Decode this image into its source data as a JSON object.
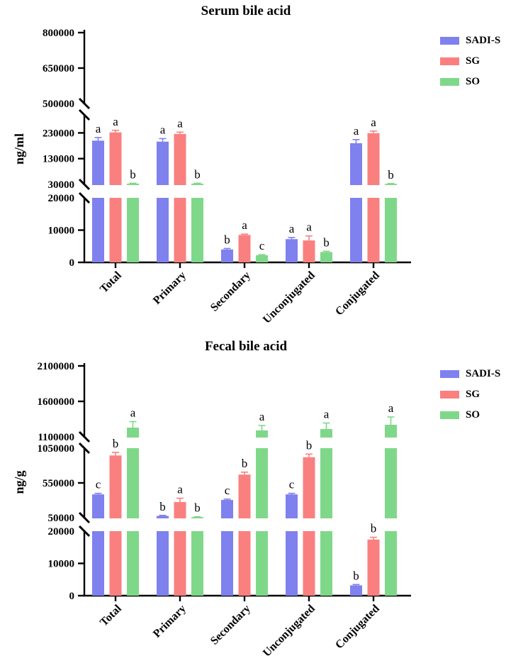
{
  "figure": {
    "background": "#ffffff"
  },
  "legend": {
    "items": [
      {
        "label": "SADI-S",
        "color": "#7f81ee"
      },
      {
        "label": "SG",
        "color": "#fa8080"
      },
      {
        "label": "SO",
        "color": "#7fd889"
      }
    ]
  },
  "chart_data": [
    {
      "type": "bar",
      "title": "Serum bile acid",
      "ylabel": "ng/ml",
      "unit": "ng/ml",
      "legend_position": "top-right",
      "grid": false,
      "categories": [
        "Total",
        "Primary",
        "Secondary",
        "Unconjugated",
        "Conjugated"
      ],
      "series": [
        {
          "name": "SADI-S",
          "color": "#7f81ee",
          "values": [
            200000,
            196000,
            4000,
            7200,
            190000
          ],
          "errors": [
            12000,
            12000,
            300,
            500,
            14000
          ],
          "letters": [
            "a",
            "a",
            "b",
            "a",
            "a"
          ]
        },
        {
          "name": "SG",
          "color": "#fa8080",
          "values": [
            232000,
            226000,
            8500,
            6800,
            229000
          ],
          "errors": [
            8000,
            7000,
            250,
            1400,
            8000
          ],
          "letters": [
            "a",
            "a",
            "a",
            "a",
            "a"
          ]
        },
        {
          "name": "SO",
          "color": "#7fd889",
          "values": [
            33000,
            33000,
            2200,
            3200,
            32000
          ],
          "errors": [
            1500,
            1500,
            200,
            250,
            1200
          ],
          "letters": [
            "b",
            "b",
            "c",
            "b",
            "b"
          ]
        }
      ],
      "axis_segments": [
        {
          "min": 500000,
          "max": 800000,
          "slash_top": false,
          "ticks": [
            {
              "v": 800000,
              "mark": "tick"
            },
            {
              "v": 650000,
              "mark": "tick"
            },
            {
              "v": 500000,
              "mark": "slash"
            }
          ]
        },
        {
          "min": 30000,
          "max": 300000,
          "slash_top": true,
          "ticks": [
            {
              "v": 230000,
              "mark": "tick"
            },
            {
              "v": 130000,
              "mark": "tick"
            },
            {
              "v": 30000,
              "mark": "slash"
            }
          ]
        },
        {
          "min": 0,
          "max": 20000,
          "slash_top": false,
          "ticks": [
            {
              "v": 20000,
              "mark": "slash"
            },
            {
              "v": 10000,
              "mark": "tick"
            },
            {
              "v": 0,
              "mark": "tick"
            }
          ]
        }
      ]
    },
    {
      "type": "bar",
      "title": "Fecal bile acid",
      "ylabel": "ng/g",
      "unit": "ng/g",
      "legend_position": "top-right",
      "grid": false,
      "categories": [
        "Total",
        "Primary",
        "Secondary",
        "Unconjugated",
        "Conjugated"
      ],
      "series": [
        {
          "name": "SADI-S",
          "color": "#7f81ee",
          "values": [
            385000,
            75000,
            305000,
            385000,
            3200
          ],
          "errors": [
            15000,
            8000,
            12000,
            15000,
            250
          ],
          "letters": [
            "c",
            "b",
            "c",
            "c",
            "b"
          ]
        },
        {
          "name": "SG",
          "color": "#fa8080",
          "values": [
            945000,
            275000,
            670000,
            920000,
            17400
          ],
          "errors": [
            45000,
            55000,
            35000,
            45000,
            700
          ],
          "letters": [
            "b",
            "a",
            "b",
            "b",
            "b"
          ]
        },
        {
          "name": "SO",
          "color": "#7fd889",
          "values": [
            1230000,
            58000,
            1190000,
            1210000,
            1270000
          ],
          "errors": [
            85000,
            5000,
            70000,
            85000,
            110000
          ],
          "letters": [
            "a",
            "b",
            "a",
            "a",
            "a"
          ]
        }
      ],
      "axis_segments": [
        {
          "min": 1100000,
          "max": 2100000,
          "slash_top": false,
          "ticks": [
            {
              "v": 2100000,
              "mark": "tick"
            },
            {
              "v": 1600000,
              "mark": "tick"
            },
            {
              "v": 1100000,
              "mark": "slash"
            }
          ]
        },
        {
          "min": 50000,
          "max": 1050000,
          "slash_top": false,
          "ticks": [
            {
              "v": 1050000,
              "mark": "slash"
            },
            {
              "v": 550000,
              "mark": "tick"
            },
            {
              "v": 50000,
              "mark": "slash"
            }
          ]
        },
        {
          "min": 0,
          "max": 20000,
          "slash_top": false,
          "ticks": [
            {
              "v": 20000,
              "mark": "slash"
            },
            {
              "v": 10000,
              "mark": "tick"
            },
            {
              "v": 0,
              "mark": "tick"
            }
          ]
        }
      ]
    }
  ]
}
